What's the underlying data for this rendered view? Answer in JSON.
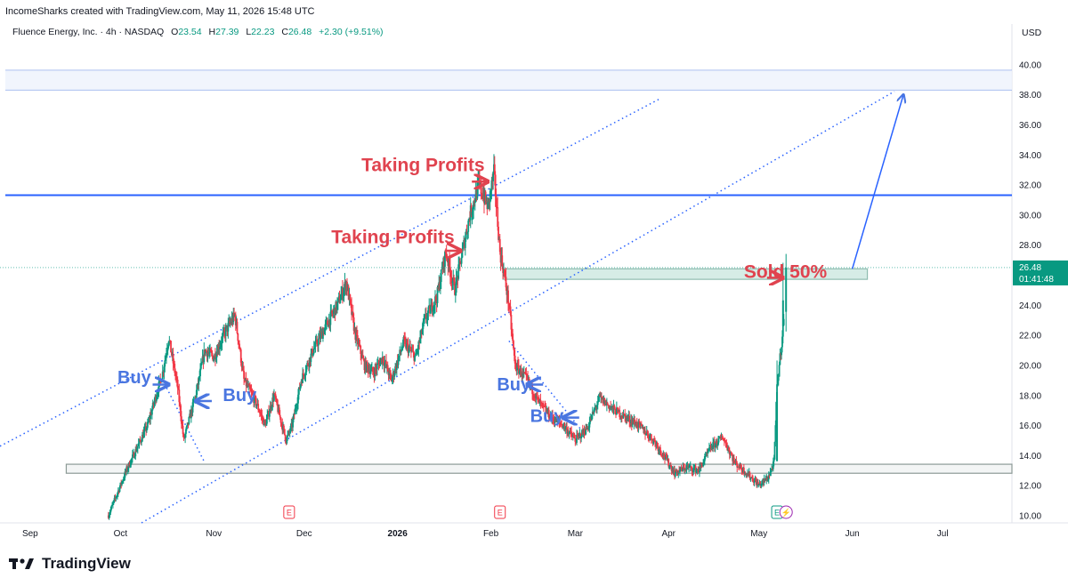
{
  "caption": "IncomeSharks created with TradingView.com, May 11, 2026 15:48 UTC",
  "legend": {
    "symbol": "Fluence Energy, Inc. · 4h · NASDAQ",
    "open_label": "O",
    "open": "23.54",
    "high_label": "H",
    "high": "27.39",
    "low_label": "L",
    "low": "22.23",
    "close_label": "C",
    "close": "26.48",
    "change": "+2.30 (+9.51%)"
  },
  "currency": "USD",
  "brand": "TradingView",
  "colors": {
    "up": "#089981",
    "down": "#f23645",
    "level": "#2962ff",
    "annotation_red": "#e0434f",
    "annotation_blue": "#4a76e0",
    "zone_fill": "#d6ece6",
    "zone_stroke": "#8fbcb0"
  },
  "chart_data": {
    "type": "candlestick",
    "timeframe": "4h",
    "ylim": [
      9.5,
      41.5
    ],
    "y_ticks": [
      10,
      12,
      14,
      16,
      18,
      20,
      22,
      24,
      26,
      28,
      30,
      32,
      34,
      36,
      38,
      40
    ],
    "x_ticks": [
      {
        "label": "Sep",
        "date": "2025-09-01"
      },
      {
        "label": "Oct",
        "date": "2025-10-01"
      },
      {
        "label": "Nov",
        "date": "2025-11-01"
      },
      {
        "label": "Dec",
        "date": "2025-12-01"
      },
      {
        "label": "2026",
        "date": "2026-01-01"
      },
      {
        "label": "Feb",
        "date": "2026-02-01"
      },
      {
        "label": "Mar",
        "date": "2026-03-01"
      },
      {
        "label": "Apr",
        "date": "2026-04-01"
      },
      {
        "label": "May",
        "date": "2026-05-01"
      },
      {
        "label": "Jun",
        "date": "2026-06-01"
      },
      {
        "label": "Jul",
        "date": "2026-07-01"
      }
    ],
    "xlim": [
      "2025-08-22",
      "2026-07-24"
    ],
    "last_price": "26.48",
    "countdown": "01:41:48",
    "price_path": [
      [
        "2025-09-27",
        10.0
      ],
      [
        "2025-10-03",
        13.0
      ],
      [
        "2025-10-10",
        16.0
      ],
      [
        "2025-10-15",
        19.5
      ],
      [
        "2025-10-17",
        21.8
      ],
      [
        "2025-10-20",
        18.5
      ],
      [
        "2025-10-22",
        15.0
      ],
      [
        "2025-10-26",
        18.0
      ],
      [
        "2025-10-29",
        21.0
      ],
      [
        "2025-11-01",
        20.5
      ],
      [
        "2025-11-05",
        22.3
      ],
      [
        "2025-11-08",
        23.3
      ],
      [
        "2025-11-11",
        19.0
      ],
      [
        "2025-11-15",
        17.5
      ],
      [
        "2025-11-18",
        16.0
      ],
      [
        "2025-11-21",
        18.0
      ],
      [
        "2025-11-25",
        15.0
      ],
      [
        "2025-11-27",
        16.0
      ],
      [
        "2025-11-30",
        19.0
      ],
      [
        "2025-12-04",
        21.0
      ],
      [
        "2025-12-08",
        22.5
      ],
      [
        "2025-12-12",
        24.0
      ],
      [
        "2025-12-15",
        25.5
      ],
      [
        "2025-12-18",
        22.0
      ],
      [
        "2025-12-21",
        20.0
      ],
      [
        "2025-12-24",
        19.5
      ],
      [
        "2025-12-27",
        20.5
      ],
      [
        "2025-12-30",
        19.0
      ],
      [
        "2026-01-03",
        21.5
      ],
      [
        "2026-01-07",
        20.5
      ],
      [
        "2026-01-10",
        23.0
      ],
      [
        "2026-01-14",
        24.5
      ],
      [
        "2026-01-17",
        27.5
      ],
      [
        "2026-01-20",
        25.0
      ],
      [
        "2026-01-22",
        27.0
      ],
      [
        "2026-01-25",
        30.0
      ],
      [
        "2026-01-28",
        32.0
      ],
      [
        "2026-01-31",
        30.5
      ],
      [
        "2026-02-02",
        32.8
      ],
      [
        "2026-02-04",
        27.5
      ],
      [
        "2026-02-05",
        26.5
      ],
      [
        "2026-02-07",
        24.0
      ],
      [
        "2026-02-09",
        20.0
      ],
      [
        "2026-02-13",
        19.0
      ],
      [
        "2026-02-17",
        17.5
      ],
      [
        "2026-02-21",
        16.5
      ],
      [
        "2026-02-25",
        16.0
      ],
      [
        "2026-03-01",
        15.0
      ],
      [
        "2026-03-05",
        15.8
      ],
      [
        "2026-03-09",
        17.8
      ],
      [
        "2026-03-14",
        17.0
      ],
      [
        "2026-03-18",
        16.5
      ],
      [
        "2026-03-22",
        16.0
      ],
      [
        "2026-03-27",
        15.0
      ],
      [
        "2026-03-31",
        13.8
      ],
      [
        "2026-04-03",
        12.8
      ],
      [
        "2026-04-07",
        13.2
      ],
      [
        "2026-04-11",
        13.0
      ],
      [
        "2026-04-15",
        14.5
      ],
      [
        "2026-04-19",
        15.2
      ],
      [
        "2026-04-23",
        13.5
      ],
      [
        "2026-04-27",
        12.8
      ],
      [
        "2026-05-01",
        12.0
      ],
      [
        "2026-05-04",
        12.5
      ],
      [
        "2026-05-06",
        13.5
      ],
      [
        "2026-05-07",
        18.5
      ],
      [
        "2026-05-10",
        24.5
      ],
      [
        "2026-05-11",
        26.48
      ]
    ],
    "horizontal_levels": [
      {
        "price": 39.6,
        "color": "#7d9be8",
        "width": 1
      },
      {
        "price": 38.3,
        "color": "#7d9be8",
        "width": 1
      },
      {
        "price": 31.3,
        "color": "#2962ff",
        "width": 2
      }
    ],
    "zones": [
      {
        "from": "2025-09-13",
        "to": "2026-07-24",
        "low": 12.8,
        "high": 13.4,
        "fill": "#f3f5f5",
        "stroke": "#8c9a96"
      },
      {
        "from": "2026-02-05",
        "to": "2026-06-06",
        "low": 25.7,
        "high": 26.4,
        "fill": "#d6ece6",
        "stroke": "#8fbcb0"
      }
    ],
    "channel_lines": [
      {
        "from": [
          "2025-08-22",
          14.6
        ],
        "to": [
          "2026-03-29",
          37.7
        ]
      },
      {
        "from": [
          "2025-10-08",
          9.5
        ],
        "to": [
          "2026-06-15",
          38.2
        ]
      },
      {
        "from": [
          "2026-02-07",
          21.6
        ],
        "to": [
          "2026-03-05",
          15.2
        ]
      },
      {
        "from": [
          "2025-10-15",
          19.0
        ],
        "to": [
          "2025-10-29",
          13.5
        ]
      }
    ],
    "target_arrow": {
      "from": [
        "2026-06-01",
        26.4
      ],
      "to": [
        "2026-06-18",
        38.0
      ]
    },
    "annotations": [
      {
        "text": "Taking Profits",
        "date": "2025-12-20",
        "price": 32.9,
        "color": "#e0434f"
      },
      {
        "text": "Taking Profits",
        "date": "2025-12-10",
        "price": 28.1,
        "color": "#e0434f"
      },
      {
        "text": "Sold 50%",
        "date": "2026-04-26",
        "price": 25.8,
        "color": "#e0434f"
      },
      {
        "text": "Buy",
        "date": "2025-09-30",
        "price": 18.8,
        "color": "#4a76e0"
      },
      {
        "text": "Buy",
        "date": "2025-11-04",
        "price": 17.6,
        "color": "#4a76e0"
      },
      {
        "text": "Buy",
        "date": "2026-02-03",
        "price": 18.3,
        "color": "#4a76e0"
      },
      {
        "text": "Buy",
        "date": "2026-02-14",
        "price": 16.2,
        "color": "#4a76e0"
      }
    ],
    "arrows": [
      {
        "date": "2025-10-17",
        "price": 18.7,
        "dir": "right",
        "color": "#4a76e0"
      },
      {
        "date": "2025-10-26",
        "price": 17.6,
        "dir": "left",
        "color": "#4a76e0"
      },
      {
        "date": "2026-02-13",
        "price": 18.7,
        "dir": "left",
        "color": "#4a76e0"
      },
      {
        "date": "2026-02-25",
        "price": 16.5,
        "dir": "left",
        "color": "#4a76e0"
      },
      {
        "date": "2026-01-31",
        "price": 32.2,
        "dir": "right",
        "color": "#e0434f"
      },
      {
        "date": "2026-01-22",
        "price": 27.6,
        "dir": "right",
        "color": "#e0434f"
      },
      {
        "date": "2026-05-09",
        "price": 25.8,
        "dir": "right",
        "color": "#e0434f"
      }
    ],
    "event_markers": [
      {
        "date": "2025-11-26",
        "label": "E"
      },
      {
        "date": "2026-02-04",
        "label": "E"
      },
      {
        "date": "2026-05-07",
        "label": "E"
      },
      {
        "date": "2026-05-10",
        "label": "⚡"
      }
    ]
  }
}
